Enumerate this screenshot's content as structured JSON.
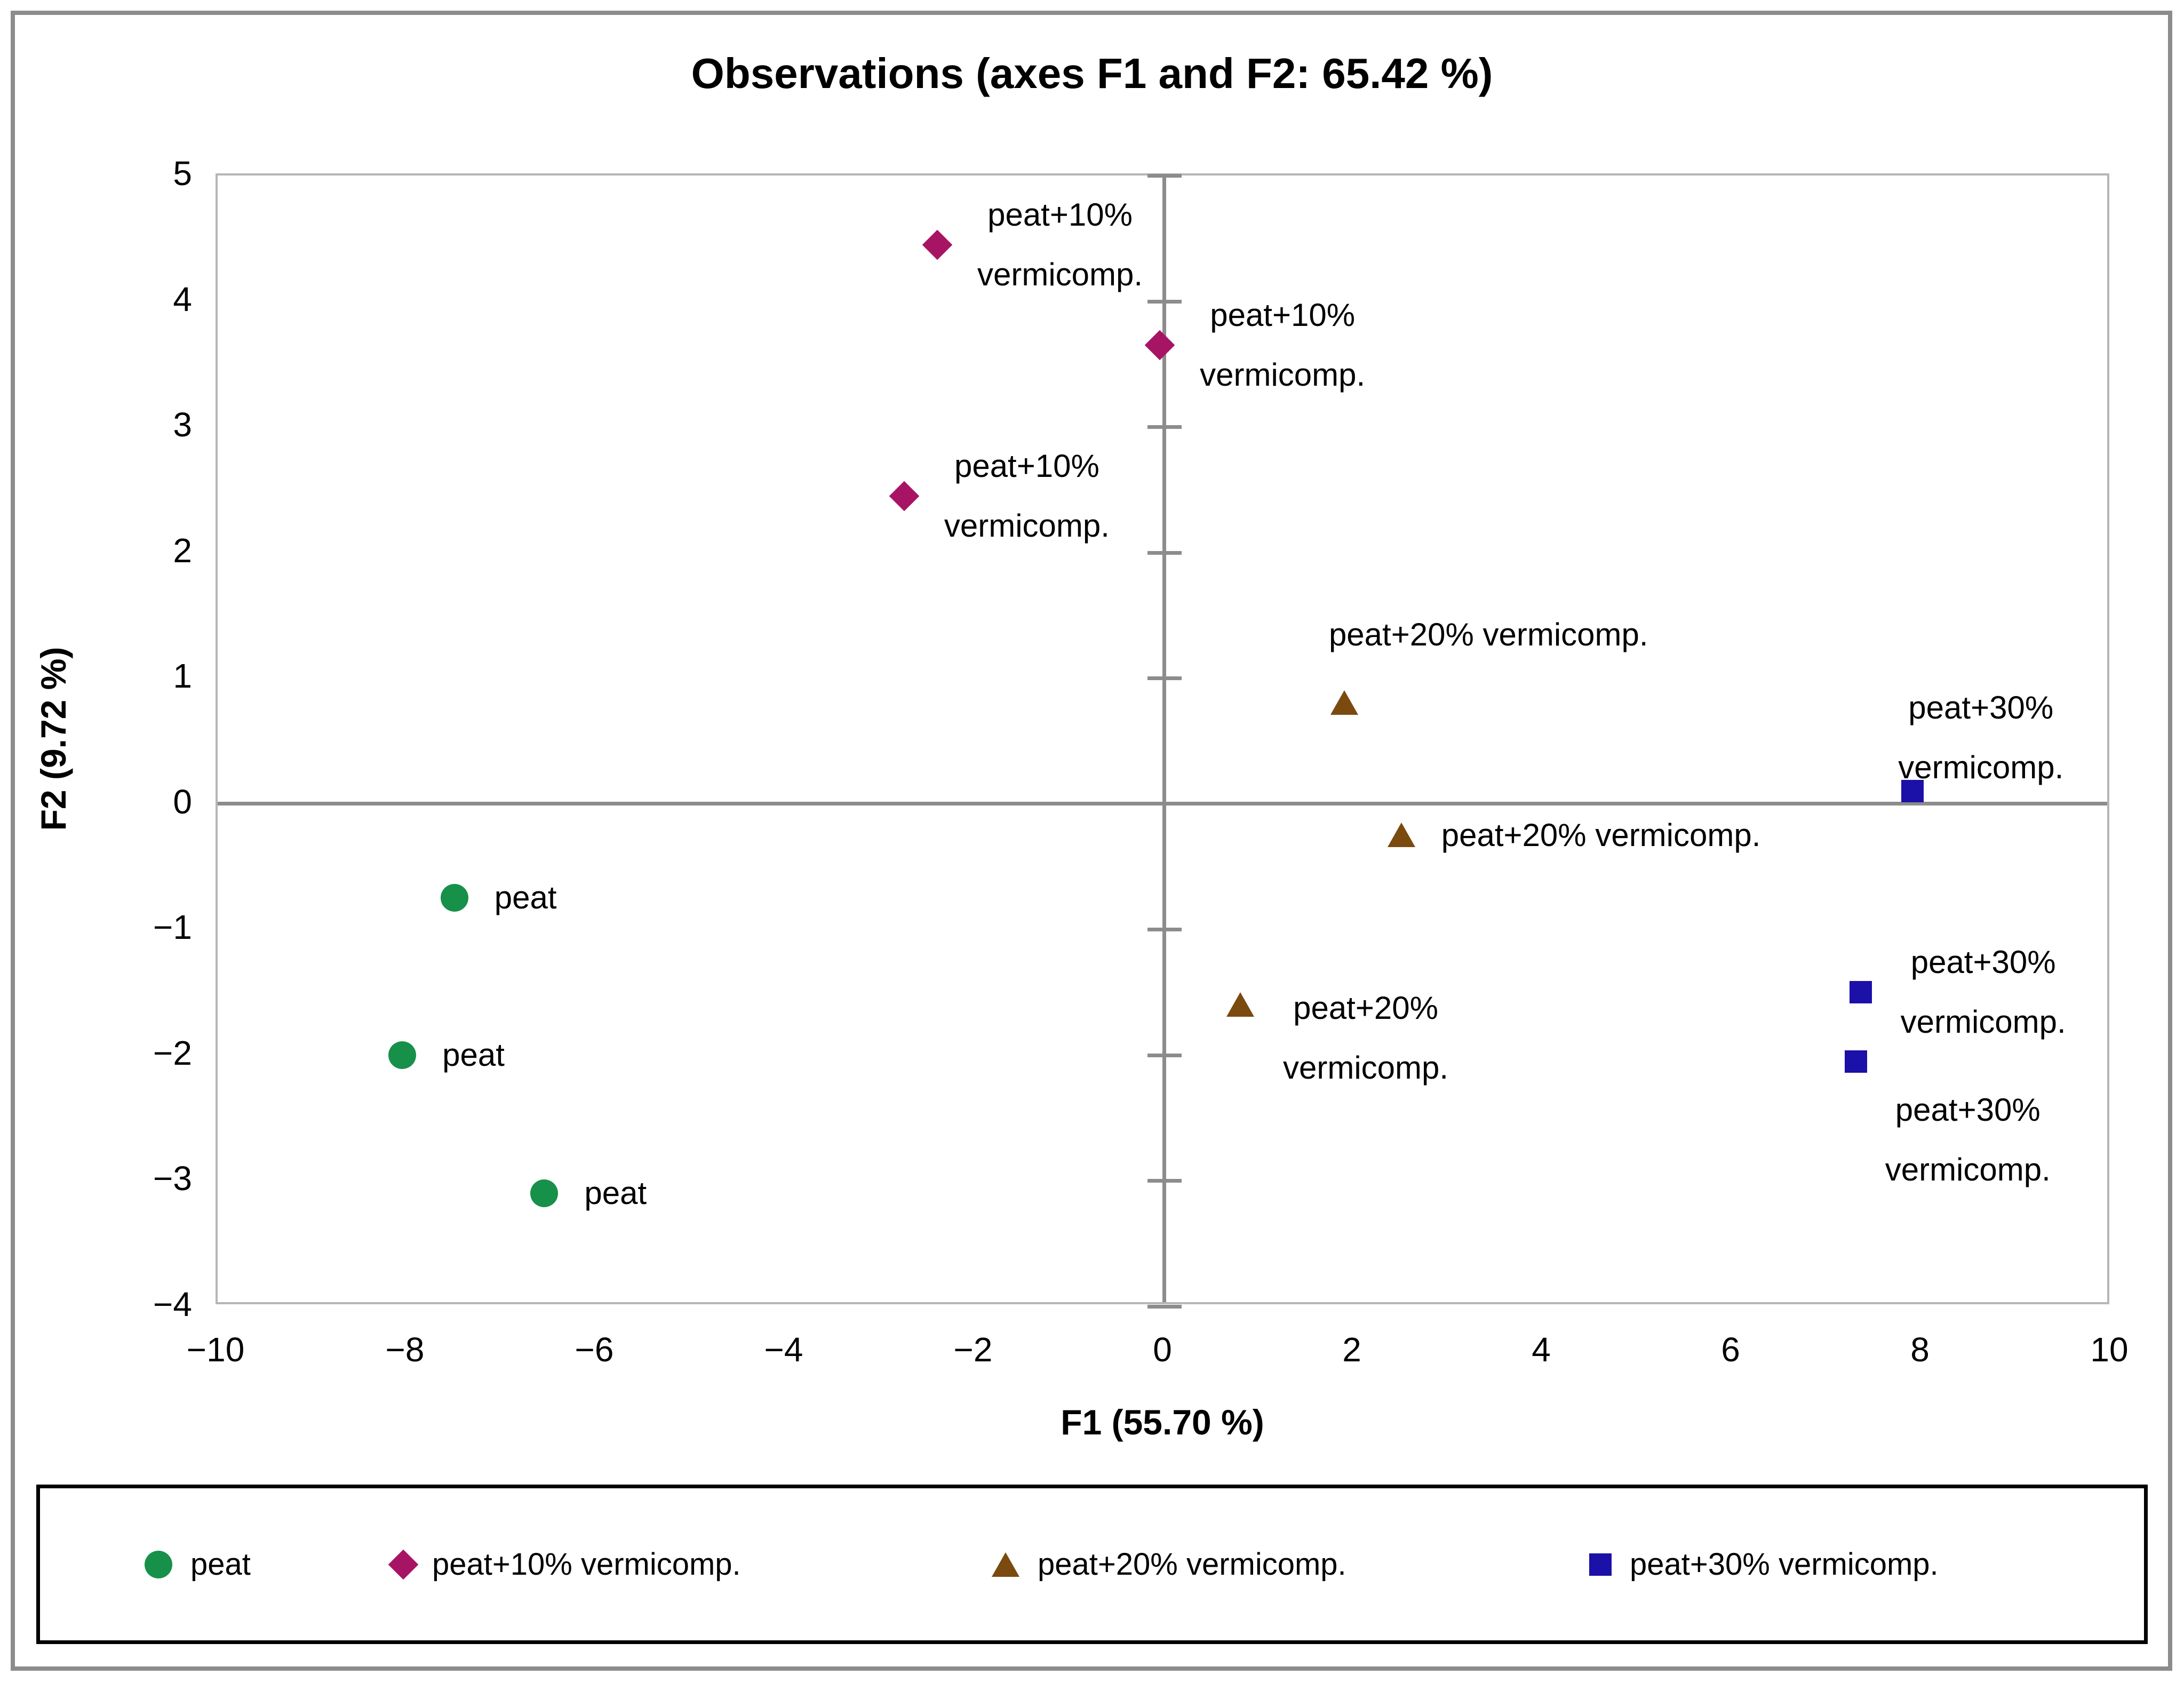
{
  "title": "Observations (axes F1 and F2: 65.42 %)",
  "chart_data": {
    "type": "scatter",
    "title": "Observations (axes F1 and F2: 65.42 %)",
    "xlabel": "F1 (55.70 %)",
    "ylabel": "F2 (9.72 %)",
    "xlim": [
      -10,
      10
    ],
    "ylim": [
      -4,
      5
    ],
    "x_ticks": [
      -10,
      -8,
      -6,
      -4,
      -2,
      0,
      2,
      4,
      6,
      8,
      10
    ],
    "y_ticks": [
      5,
      4,
      3,
      2,
      1,
      0,
      -1,
      -2,
      -3,
      -4
    ],
    "grid": false,
    "axis_cross": {
      "x": 0,
      "y": 0
    },
    "legend_position": "bottom",
    "series": [
      {
        "name": "peat",
        "marker": "circle",
        "color": "#17904A",
        "points": [
          {
            "x": -7.5,
            "y": -0.75,
            "label_lines": [
              "peat"
            ],
            "placement": "right"
          },
          {
            "x": -8.05,
            "y": -2.0,
            "label_lines": [
              "peat"
            ],
            "placement": "right"
          },
          {
            "x": -6.55,
            "y": -3.1,
            "label_lines": [
              "peat"
            ],
            "placement": "right"
          }
        ]
      },
      {
        "name": "peat+10% vermicomp.",
        "marker": "diamond",
        "color": "#A81464",
        "points": [
          {
            "x": -2.4,
            "y": 4.45,
            "label_lines": [
              "peat+10%",
              "vermicomp."
            ],
            "placement": "right"
          },
          {
            "x": -0.05,
            "y": 3.65,
            "label_lines": [
              "peat+10%",
              "vermicomp."
            ],
            "placement": "right"
          },
          {
            "x": -2.75,
            "y": 2.45,
            "label_lines": [
              "peat+10%",
              "vermicomp."
            ],
            "placement": "right"
          }
        ]
      },
      {
        "name": "peat+20% vermicomp.",
        "marker": "triangle",
        "color": "#7A4A0E",
        "points": [
          {
            "x": 1.9,
            "y": 0.8,
            "label_lines": [
              "peat+20% vermicomp."
            ],
            "placement": "above-right"
          },
          {
            "x": 2.5,
            "y": -0.25,
            "label_lines": [
              "peat+20% vermicomp."
            ],
            "placement": "right"
          },
          {
            "x": 0.8,
            "y": -1.6,
            "label_lines": [
              "peat+20%",
              "vermicomp."
            ],
            "placement": "right-down"
          }
        ]
      },
      {
        "name": "peat+30% vermicomp.",
        "marker": "square",
        "color": "#1B10A8",
        "points": [
          {
            "x": 7.9,
            "y": 0.1,
            "label_lines": [
              "peat+30%",
              "vermicomp."
            ],
            "placement": "above-tight"
          },
          {
            "x": 7.35,
            "y": -1.5,
            "label_lines": [
              "peat+30%",
              "vermicomp."
            ],
            "placement": "right"
          },
          {
            "x": 7.3,
            "y": -2.05,
            "label_lines": [
              "peat+30%",
              "vermicomp."
            ],
            "placement": "below-right"
          }
        ]
      }
    ]
  },
  "colors": {
    "axis_line": "#8C8C8C",
    "plot_border": "#B6B6B6",
    "outer_frame": "#8C8C8C",
    "legend_border": "#000000",
    "text": "#000000",
    "background": "#FFFFFF"
  }
}
